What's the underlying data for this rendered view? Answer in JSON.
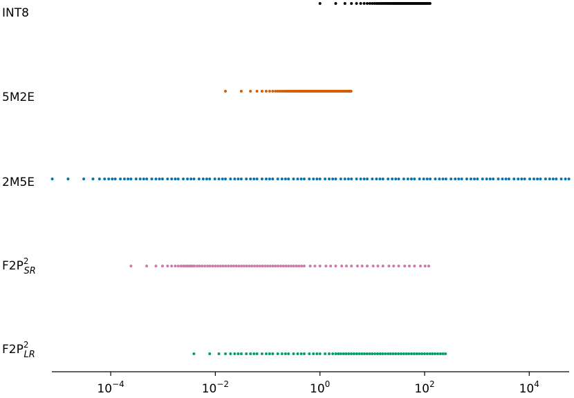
{
  "chart_data": {
    "type": "strip",
    "log_x": true,
    "xlim": [
      7.5e-06,
      58000
    ],
    "xticks": [
      {
        "value": 0.0001,
        "label": "10−4"
      },
      {
        "value": 0.01,
        "label": "10−2"
      },
      {
        "value": 1,
        "label": "100"
      },
      {
        "value": 100,
        "label": "102"
      },
      {
        "value": 10000,
        "label": "104"
      }
    ],
    "series": [
      {
        "name": "INT8",
        "color": "#000000",
        "values": [
          1,
          2,
          3,
          4,
          5,
          6,
          7,
          8,
          9,
          10,
          11,
          12,
          13,
          14,
          15,
          16,
          17,
          18,
          19,
          20,
          21,
          22,
          23,
          24,
          25,
          26,
          27,
          28,
          29,
          30,
          31,
          32,
          33,
          34,
          35,
          36,
          37,
          38,
          39,
          40,
          41,
          42,
          43,
          44,
          45,
          46,
          47,
          48,
          49,
          50,
          51,
          52,
          53,
          54,
          55,
          56,
          57,
          58,
          59,
          60,
          61,
          62,
          63,
          64,
          65,
          66,
          67,
          68,
          69,
          70,
          71,
          72,
          73,
          74,
          75,
          76,
          77,
          78,
          79,
          80,
          81,
          82,
          83,
          84,
          85,
          86,
          87,
          88,
          89,
          90,
          91,
          92,
          93,
          94,
          95,
          96,
          97,
          98,
          99,
          100,
          101,
          102,
          103,
          104,
          105,
          106,
          107,
          108,
          109,
          110,
          111,
          112,
          113,
          114,
          115,
          116,
          117,
          118,
          119,
          120,
          121,
          122,
          123,
          124,
          125,
          126,
          127
        ]
      },
      {
        "name": "5M2E",
        "color": "#d55e00",
        "values": [
          0.0156,
          0.0313,
          0.0469,
          0.0625,
          0.0781,
          0.0938,
          0.109,
          0.125,
          0.141,
          0.156,
          0.172,
          0.188,
          0.203,
          0.219,
          0.234,
          0.25,
          0.266,
          0.281,
          0.297,
          0.313,
          0.328,
          0.344,
          0.359,
          0.375,
          0.391,
          0.406,
          0.422,
          0.438,
          0.453,
          0.469,
          0.484,
          0.5,
          0.516,
          0.531,
          0.547,
          0.563,
          0.578,
          0.594,
          0.609,
          0.625,
          0.641,
          0.656,
          0.672,
          0.688,
          0.703,
          0.719,
          0.734,
          0.75,
          0.766,
          0.781,
          0.797,
          0.813,
          0.828,
          0.844,
          0.859,
          0.875,
          0.891,
          0.906,
          0.922,
          0.938,
          0.953,
          0.969,
          0.984,
          1,
          1.031,
          1.063,
          1.094,
          1.125,
          1.156,
          1.188,
          1.219,
          1.25,
          1.281,
          1.313,
          1.344,
          1.375,
          1.406,
          1.438,
          1.469,
          1.5,
          1.531,
          1.563,
          1.594,
          1.625,
          1.656,
          1.688,
          1.719,
          1.75,
          1.781,
          1.813,
          1.844,
          1.875,
          1.906,
          1.938,
          1.969,
          2,
          2.063,
          2.125,
          2.188,
          2.25,
          2.313,
          2.375,
          2.438,
          2.5,
          2.563,
          2.625,
          2.688,
          2.75,
          2.813,
          2.875,
          2.938,
          3,
          3.063,
          3.125,
          3.188,
          3.25,
          3.313,
          3.375,
          3.438,
          3.5,
          3.563,
          3.625,
          3.688,
          3.75,
          3.813,
          3.875,
          3.938
        ]
      },
      {
        "name": "2M5E",
        "color": "#0072b2",
        "values": [
          7.63e-06,
          1.53e-05,
          3.05e-05,
          4.58e-05,
          6.1e-05,
          7.63e-05,
          9.16e-05,
          0.000107,
          0.000122,
          0.000153,
          0.000183,
          0.000214,
          0.000244,
          0.000305,
          0.000366,
          0.000427,
          0.000488,
          0.00061,
          0.000732,
          0.000854,
          0.000977,
          0.00122,
          0.00146,
          0.00171,
          0.00195,
          0.00244,
          0.00293,
          0.00342,
          0.00391,
          0.00488,
          0.00586,
          0.00684,
          0.00781,
          0.00977,
          0.0117,
          0.0137,
          0.0156,
          0.0195,
          0.0234,
          0.0273,
          0.0313,
          0.0391,
          0.0469,
          0.0547,
          0.0625,
          0.0781,
          0.0938,
          0.109,
          0.125,
          0.156,
          0.188,
          0.219,
          0.25,
          0.3125,
          0.375,
          0.4375,
          0.5,
          0.625,
          0.75,
          0.875,
          1,
          1.25,
          1.5,
          1.75,
          2,
          2.5,
          3,
          3.5,
          4,
          5,
          6,
          7,
          8,
          10,
          12,
          14,
          16,
          20,
          24,
          28,
          32,
          40,
          48,
          56,
          64,
          80,
          96,
          112,
          128,
          160,
          192,
          224,
          256,
          320,
          384,
          448,
          512,
          640,
          768,
          896,
          1024,
          1280,
          1536,
          1792,
          2048,
          2560,
          3072,
          3584,
          4096,
          5120,
          6144,
          7168,
          8192,
          10240,
          12288,
          14336,
          16384,
          20480,
          24576,
          28672,
          32768,
          40960,
          49152,
          57344
        ]
      },
      {
        "name": "F2P",
        "name_sup": "2",
        "name_sub": "SR",
        "color": "#cc79a7",
        "values": [
          0.000244,
          0.000488,
          0.000732,
          0.000977,
          0.00122,
          0.00146,
          0.00171,
          0.00195,
          0.0022,
          0.00244,
          0.00269,
          0.00293,
          0.00317,
          0.00342,
          0.00366,
          0.004,
          0.0045,
          0.005,
          0.0056,
          0.0063,
          0.0071,
          0.0079,
          0.0089,
          0.01,
          0.0112,
          0.0126,
          0.0141,
          0.0158,
          0.0178,
          0.02,
          0.0224,
          0.0251,
          0.0282,
          0.0316,
          0.0355,
          0.0398,
          0.0447,
          0.0501,
          0.0562,
          0.0631,
          0.0708,
          0.0794,
          0.0891,
          0.1,
          0.112,
          0.126,
          0.141,
          0.158,
          0.178,
          0.2,
          0.224,
          0.251,
          0.282,
          0.316,
          0.355,
          0.398,
          0.447,
          0.5,
          0.65,
          0.8,
          1,
          1.3,
          1.6,
          2,
          2.6,
          3.2,
          4,
          5.2,
          6.4,
          8,
          10.4,
          12.8,
          16,
          20.8,
          25.6,
          32,
          41.6,
          51.2,
          64,
          83.2,
          102.4,
          120
        ]
      },
      {
        "name": "F2P",
        "name_sup": "2",
        "name_sub": "LR",
        "color": "#009e73",
        "values": [
          0.0039,
          0.0078,
          0.0117,
          0.0156,
          0.0195,
          0.0234,
          0.0273,
          0.0313,
          0.0391,
          0.0469,
          0.0547,
          0.0625,
          0.0781,
          0.0938,
          0.109,
          0.125,
          0.156,
          0.188,
          0.219,
          0.25,
          0.313,
          0.375,
          0.438,
          0.5,
          0.625,
          0.75,
          0.875,
          1,
          1.25,
          1.5,
          1.75,
          2,
          2.24,
          2.51,
          2.82,
          3.16,
          3.55,
          3.98,
          4.47,
          5.01,
          5.62,
          6.31,
          7.08,
          7.94,
          8.91,
          10,
          11.2,
          12.6,
          14.1,
          15.8,
          17.8,
          20,
          22.4,
          25.1,
          28.2,
          31.6,
          35.5,
          39.8,
          44.7,
          50.1,
          56.2,
          63.1,
          70.8,
          79.4,
          89.1,
          100,
          112,
          126,
          141,
          158,
          178,
          200,
          224,
          251
        ]
      }
    ]
  }
}
